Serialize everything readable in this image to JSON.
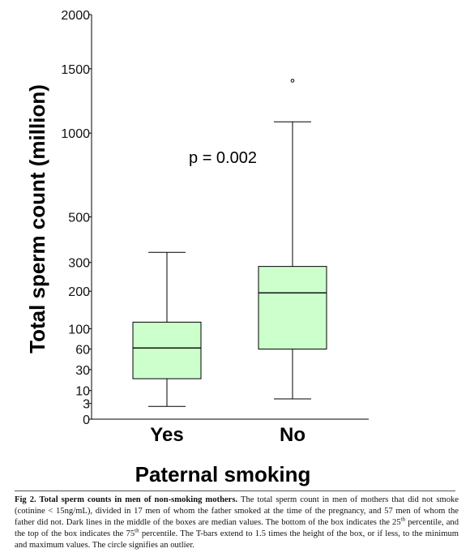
{
  "chart_data": {
    "type": "box",
    "ylabel": "Total sperm count (million)",
    "xlabel": "Paternal smoking",
    "y_scale": "square-root",
    "yticks": [
      0,
      3,
      10,
      30,
      60,
      100,
      200,
      300,
      500,
      1000,
      1500,
      2000
    ],
    "ylim": [
      0,
      2000
    ],
    "grid": false,
    "categories": [
      "Yes",
      "No"
    ],
    "box_fill": "#ccffcc",
    "boxes": [
      {
        "category": "Yes",
        "whisker_low": 2,
        "q1": 20,
        "median": 62,
        "q3": 115,
        "whisker_high": 340,
        "outliers": []
      },
      {
        "category": "No",
        "whisker_low": 5,
        "q1": 60,
        "median": 195,
        "q3": 285,
        "whisker_high": 1080,
        "outliers": [
          1400
        ]
      }
    ],
    "annotations": [
      {
        "text": "p = 0.002"
      }
    ]
  },
  "caption": {
    "label": "Fig 2. Total sperm counts in men of non-smoking mothers.",
    "text_parts": [
      " The total sperm count in men of mothers that did not smoke (cotinine < 15ng/mL), divided in 17 men of whom the father smoked at the time of the pregnancy, and 57 men of whom the father did not. Dark lines in the middle of the boxes are median values. The bottom of the box indicates the 25",
      " percentile, and the top of the box indicates the 75",
      " percentile. The T-bars extend to 1.5 times the height of the box, or if less, to the minimum and maximum values. The circle signifies an outlier."
    ],
    "superscript": "th"
  }
}
